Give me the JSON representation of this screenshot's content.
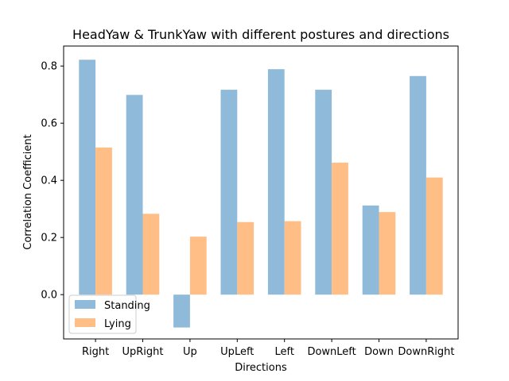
{
  "chart_data": {
    "type": "bar",
    "title": "HeadYaw & TrunkYaw with different postures and directions",
    "xlabel": "Directions",
    "ylabel": "Correlation Coefficient",
    "ylim": [
      -0.155,
      0.87
    ],
    "yticks": [
      0.0,
      0.2,
      0.4,
      0.6,
      0.8
    ],
    "ytick_labels": [
      "0.0",
      "0.2",
      "0.4",
      "0.6",
      "0.8"
    ],
    "categories": [
      "Right",
      "UpRight",
      "Up",
      "UpLeft",
      "Left",
      "DownLeft",
      "Down",
      "DownRight"
    ],
    "series": [
      {
        "name": "Standing",
        "color": "#8fbad9",
        "values": [
          0.822,
          0.699,
          -0.115,
          0.717,
          0.789,
          0.717,
          0.312,
          0.765
        ]
      },
      {
        "name": "Lying",
        "color": "#ffbe86",
        "values": [
          0.515,
          0.283,
          0.203,
          0.254,
          0.257,
          0.462,
          0.289,
          0.41
        ]
      }
    ],
    "legend_position": "lower-left",
    "grid": false
  }
}
